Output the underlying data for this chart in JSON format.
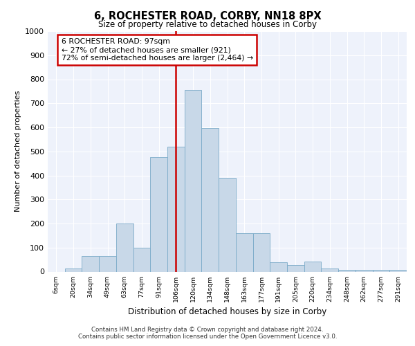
{
  "title": "6, ROCHESTER ROAD, CORBY, NN18 8PX",
  "subtitle": "Size of property relative to detached houses in Corby",
  "xlabel": "Distribution of detached houses by size in Corby",
  "ylabel": "Number of detached properties",
  "bar_color": "#c8d8e8",
  "bar_edge_color": "#7aaac8",
  "bg_color": "#eef2fb",
  "grid_color": "#ffffff",
  "categories": [
    "6sqm",
    "20sqm",
    "34sqm",
    "49sqm",
    "63sqm",
    "77sqm",
    "91sqm",
    "106sqm",
    "120sqm",
    "134sqm",
    "148sqm",
    "163sqm",
    "177sqm",
    "191sqm",
    "205sqm",
    "220sqm",
    "234sqm",
    "248sqm",
    "262sqm",
    "277sqm",
    "291sqm"
  ],
  "values": [
    0,
    13,
    65,
    65,
    200,
    100,
    475,
    518,
    755,
    598,
    390,
    160,
    160,
    40,
    27,
    43,
    13,
    7,
    7,
    7,
    7
  ],
  "vline_position": 7.5,
  "vline_color": "#cc0000",
  "annotation_text": "6 ROCHESTER ROAD: 97sqm\n← 27% of detached houses are smaller (921)\n72% of semi-detached houses are larger (2,464) →",
  "annotation_box_color": "#ffffff",
  "annotation_box_edge_color": "#cc0000",
  "ylim": [
    0,
    1000
  ],
  "yticks": [
    0,
    100,
    200,
    300,
    400,
    500,
    600,
    700,
    800,
    900,
    1000
  ],
  "footer_line1": "Contains HM Land Registry data © Crown copyright and database right 2024.",
  "footer_line2": "Contains public sector information licensed under the Open Government Licence v3.0."
}
